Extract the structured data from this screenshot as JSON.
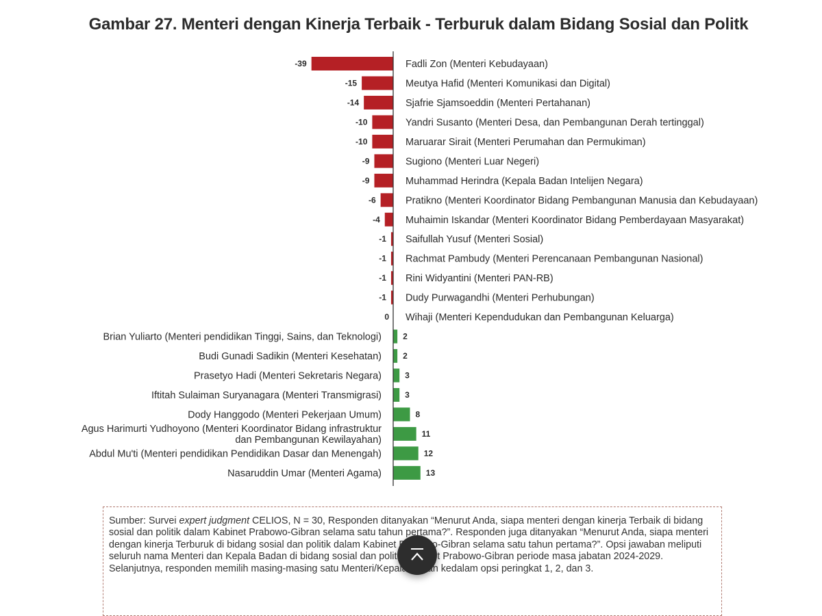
{
  "chart_data": {
    "type": "bar",
    "orientation": "horizontal",
    "title": "Gambar 27. Menteri dengan Kinerja Terbaik - Terburuk dalam Bidang Sosial dan Politk",
    "colors": {
      "negative": "#b52025",
      "positive": "#3d9a44",
      "axis": "#333333"
    },
    "categories": [
      "Fadli Zon (Menteri Kebudayaan)",
      "Meutya Hafid (Menteri Komunikasi dan Digital)",
      "Sjafrie Sjamsoeddin (Menteri Pertahanan)",
      "Yandri Susanto (Menteri Desa, dan Pembangunan Derah tertinggal)",
      "Maruarar Sirait (Menteri Perumahan dan Permukiman)",
      "Sugiono (Menteri Luar Negeri)",
      "Muhammad Herindra (Kepala Badan Intelijen Negara)",
      "Pratikno (Menteri Koordinator Bidang Pembangunan Manusia dan Kebudayaan)",
      "Muhaimin Iskandar (Menteri Koordinator Bidang Pemberdayaan Masyarakat)",
      "Saifullah Yusuf (Menteri Sosial)",
      "Rachmat Pambudy (Menteri Perencanaan Pembangunan Nasional)",
      "Rini Widyantini (Menteri PAN-RB)",
      "Dudy Purwagandhi (Menteri Perhubungan)",
      "Wihaji (Menteri Kependudukan dan Pembangunan Keluarga)",
      "Brian Yuliarto (Menteri pendidikan Tinggi, Sains, dan Teknologi)",
      "Budi Gunadi Sadikin (Menteri Kesehatan)",
      "Prasetyo Hadi (Menteri Sekretaris Negara)",
      "Iftitah Sulaiman Suryanagara (Menteri Transmigrasi)",
      "Dody Hanggodo (Menteri Pekerjaan Umum)",
      "Agus Harimurti Yudhoyono (Menteri Koordinator Bidang infrastruktur\ndan Pembangunan Kewilayahan)",
      "Abdul Mu'ti (Menteri pendidikan Pendidikan Dasar dan Menengah)",
      "Nasaruddin Umar (Menteri Agama)"
    ],
    "values": [
      -39,
      -15,
      -14,
      -10,
      -10,
      -9,
      -9,
      -6,
      -4,
      -1,
      -1,
      -1,
      -1,
      0,
      2,
      2,
      3,
      3,
      8,
      11,
      12,
      13
    ],
    "grid": false,
    "legend": "none"
  },
  "source": {
    "prefix": "Sumber: Survei ",
    "italic": "expert judgment",
    "text": " CELIOS, N = 30, Responden ditanyakan “Menurut Anda, siapa menteri dengan kinerja Terbaik di bidang sosial dan politik dalam Kabinet Prabowo-Gibran selama satu tahun pertama?”. Responden juga ditanyakan “Menurut Anda, siapa menteri dengan kinerja Terburuk di bidang sosial dan politik dalam Kabinet Prabowo-Gibran selama satu tahun pertama?”. Opsi jawaban meliputi seluruh nama Menteri dan Kepala Badan di bidang sosial dan politik Kabinet Prabowo-Gibran periode masa jabatan 2024-2029. Selanjutnya, responden memilih masing-masing satu Menteri/Kepala Badan kedalam opsi peringkat 1, 2, dan 3."
  },
  "scroll_top_button": {
    "icon": "arrow-up-to-top-icon"
  }
}
